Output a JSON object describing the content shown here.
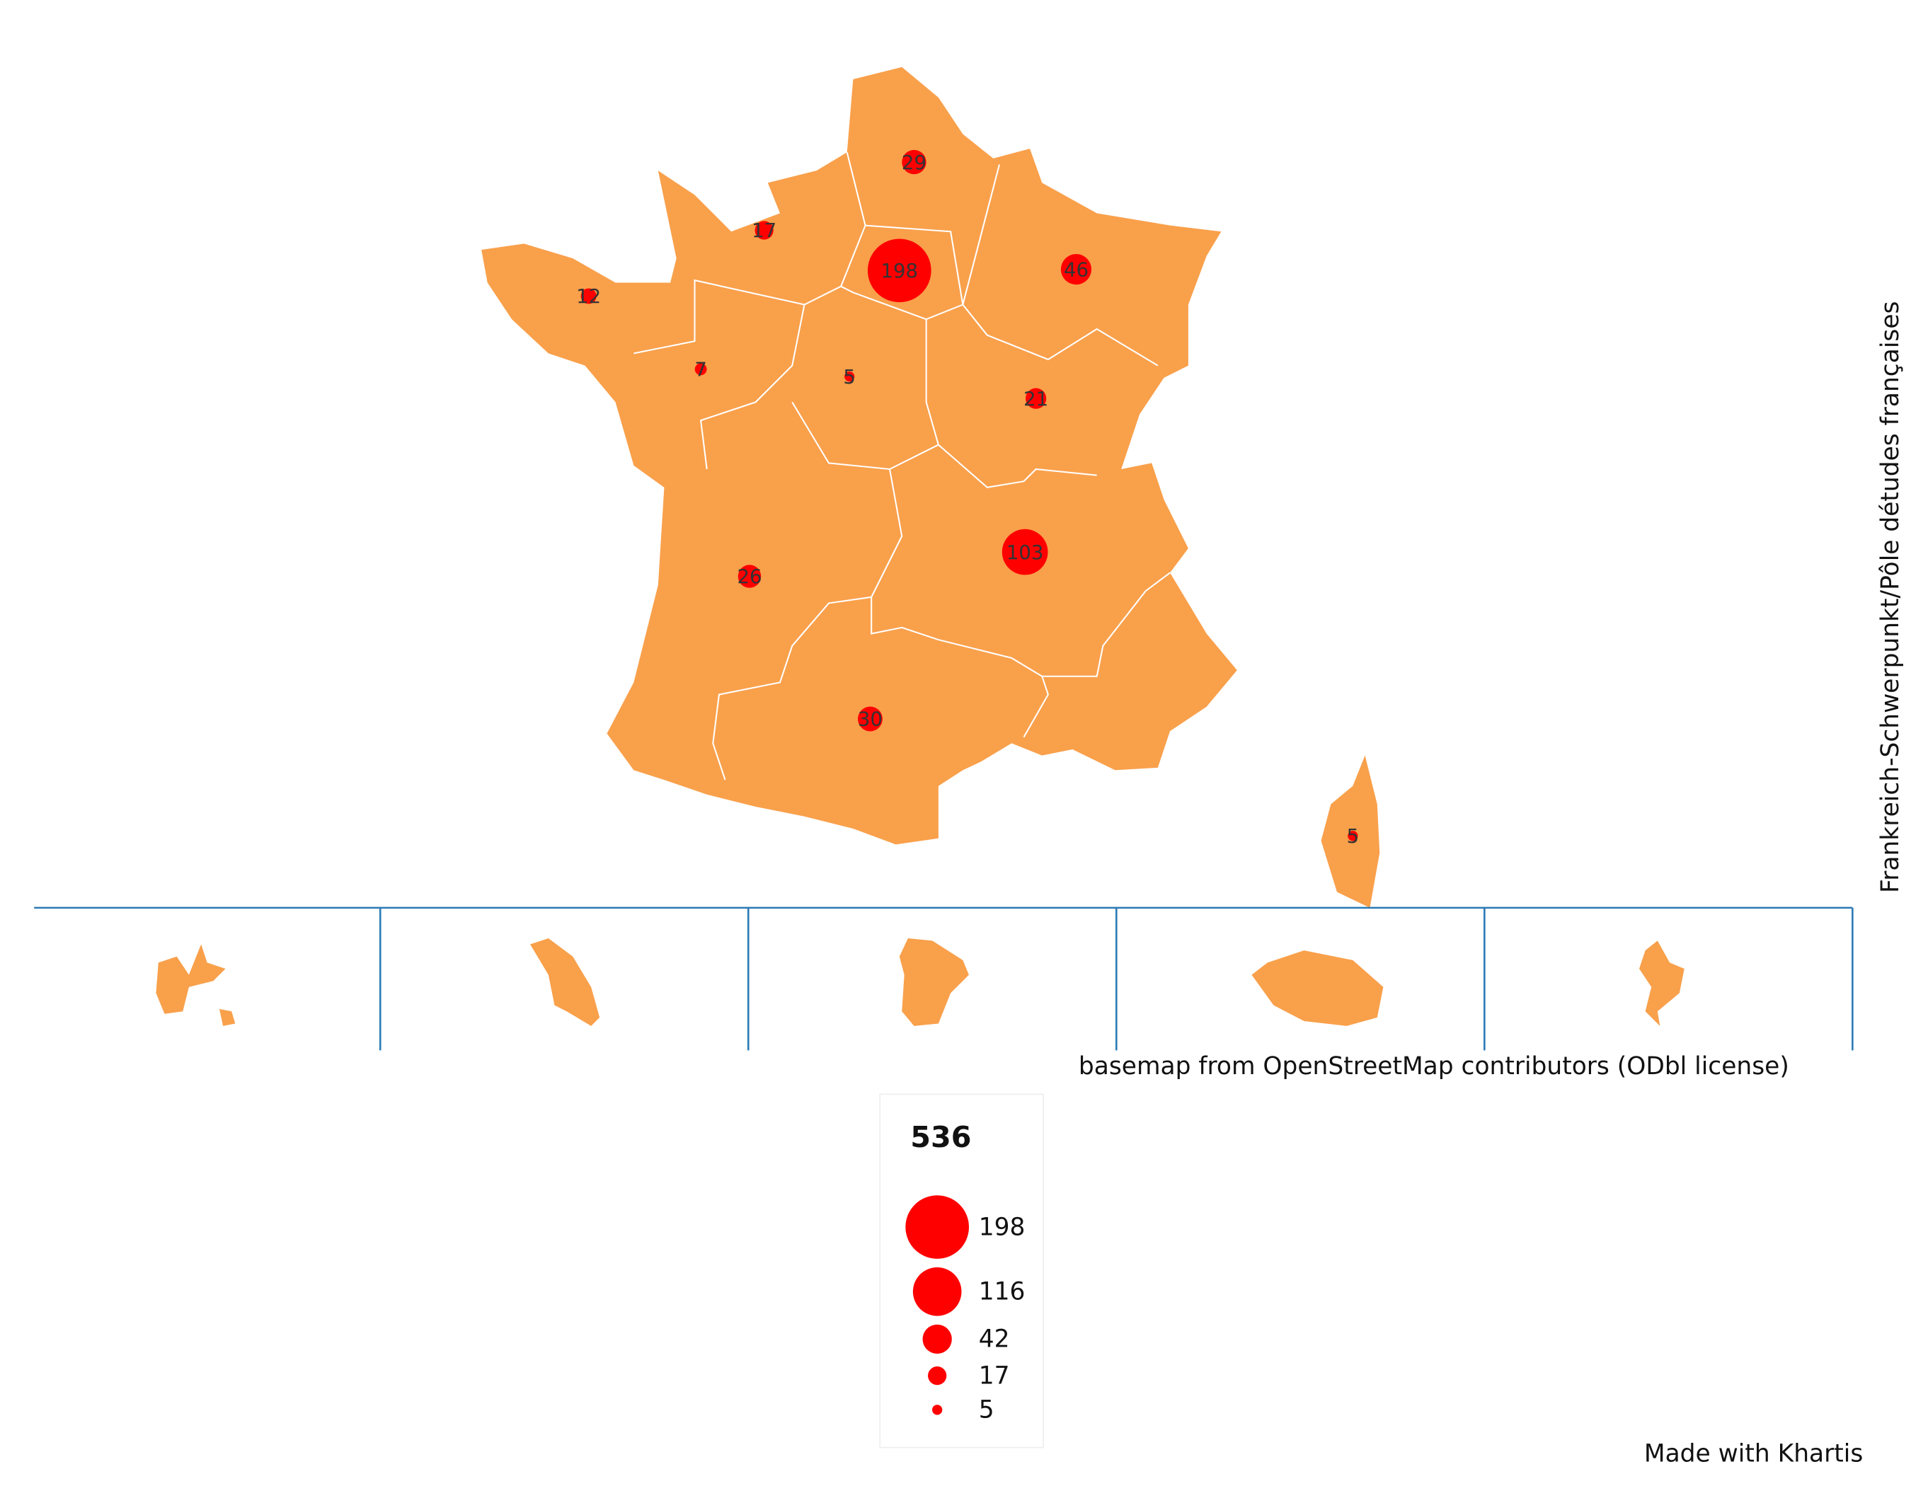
{
  "map": {
    "source": "Frankreich-Schwerpunkt/Pôle détudes françaises",
    "attribution": "basemap from OpenStreetMap contributors (ODbl license)",
    "credit": "Made with Khartis",
    "land_color": "#f9a04b",
    "symbols": {
      "color": "#ff0000",
      "values": [
        29,
        17,
        198,
        46,
        12,
        7,
        5,
        21,
        103,
        26,
        30,
        5
      ]
    },
    "legend": {
      "title": 536,
      "values": [
        198,
        116,
        42,
        17,
        5
      ]
    }
  }
}
